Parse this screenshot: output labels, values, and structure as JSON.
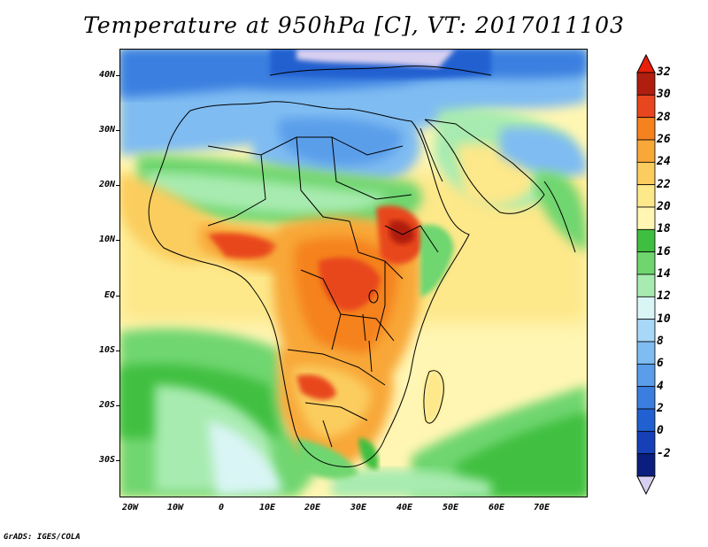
{
  "title": "Temperature at 950hPa [C], VT: 2017011103",
  "credit": "GrADS: IGES/COLA",
  "lat_labels": [
    "40N",
    "30N",
    "20N",
    "10N",
    "EQ",
    "10S",
    "20S",
    "30S"
  ],
  "lon_labels": [
    "20W",
    "10W",
    "0",
    "10E",
    "20E",
    "30E",
    "40E",
    "50E",
    "60E",
    "70E"
  ],
  "colorbar": {
    "levels": [
      "32",
      "30",
      "28",
      "26",
      "24",
      "22",
      "20",
      "18",
      "16",
      "14",
      "12",
      "10",
      "8",
      "6",
      "4",
      "2",
      "0",
      "-2"
    ],
    "colors": [
      "#b01e10",
      "#e8461e",
      "#f5821e",
      "#f8a739",
      "#fbcd5f",
      "#fde88a",
      "#fff6b3",
      "#3fbf3f",
      "#6fd66f",
      "#a8ebb0",
      "#d9f5f5",
      "#a8d8f8",
      "#7fbcf2",
      "#5a9eea",
      "#3a7fe0",
      "#2060d0",
      "#1540b8",
      "#0a1e80"
    ],
    "top_color": "#e8200a",
    "bottom_color": "#d8d0f0"
  },
  "palette": {
    "ocean_cool": "#a8d8f8",
    "ocean_warm": "#fff6b3",
    "sahara": "#7fbcf2",
    "sahel": "#6fd66f",
    "hot": "#f5821e",
    "med": "#2060d0"
  }
}
